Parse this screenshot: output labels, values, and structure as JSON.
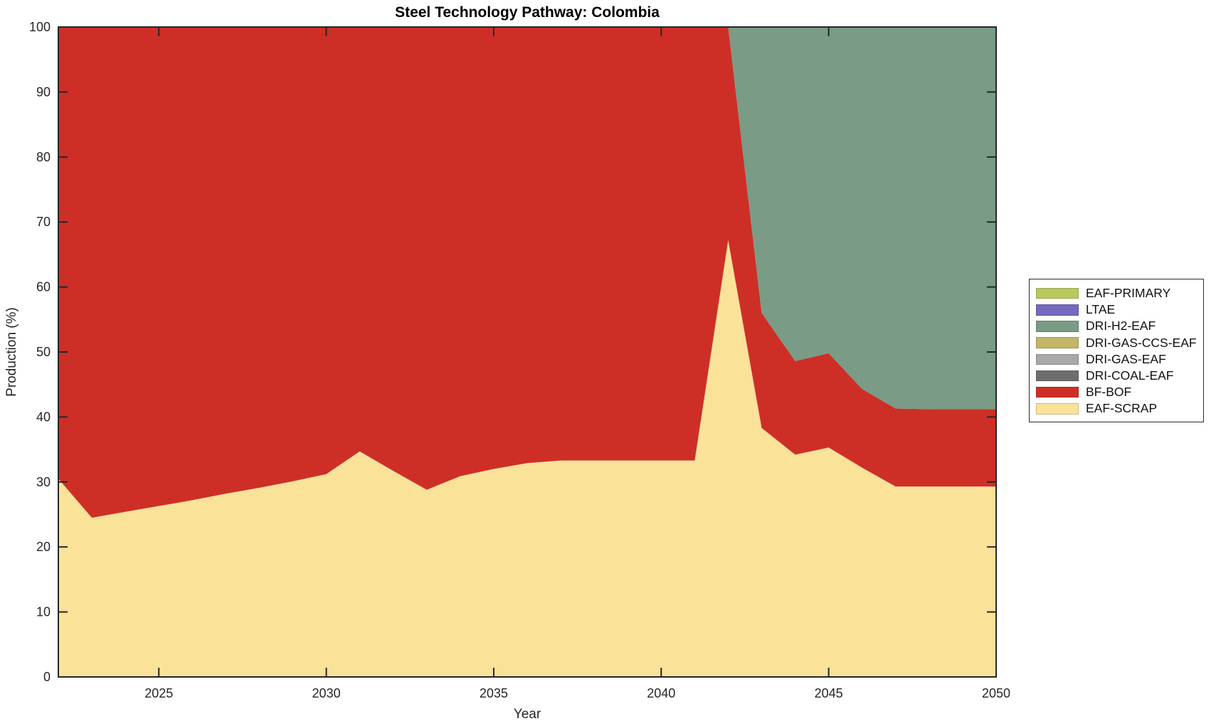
{
  "chart_data": {
    "type": "area",
    "stacked": true,
    "title": "Steel Technology Pathway: Colombia",
    "xlabel": "Year",
    "ylabel": "Production (%)",
    "xlim": [
      2022,
      2050
    ],
    "ylim": [
      0,
      100
    ],
    "xticks": [
      2025,
      2030,
      2035,
      2040,
      2045,
      2050
    ],
    "yticks": [
      0,
      10,
      20,
      30,
      40,
      50,
      60,
      70,
      80,
      90,
      100
    ],
    "grid": false,
    "axis_color": "#262626",
    "x": [
      2022,
      2023,
      2024,
      2025,
      2026,
      2027,
      2028,
      2029,
      2030,
      2031,
      2032,
      2033,
      2034,
      2035,
      2036,
      2037,
      2038,
      2039,
      2040,
      2041,
      2042,
      2043,
      2044,
      2045,
      2046,
      2047,
      2048,
      2049,
      2050
    ],
    "series": [
      {
        "name": "EAF-SCRAP",
        "color": "#FBE299",
        "values": [
          30.5,
          24.5,
          25.4,
          26.3,
          27.2,
          28.2,
          29.1,
          30.1,
          31.2,
          34.7,
          31.7,
          28.8,
          30.9,
          32.0,
          32.9,
          33.3,
          33.3,
          33.3,
          33.3,
          33.3,
          67.2,
          38.3,
          34.2,
          35.3,
          32.2,
          29.3,
          29.3,
          29.3,
          29.3
        ]
      },
      {
        "name": "BF-BOF",
        "color": "#CD2F27",
        "values": [
          69.5,
          75.5,
          74.6,
          73.7,
          72.8,
          71.8,
          70.9,
          69.9,
          68.8,
          65.3,
          68.3,
          71.2,
          69.1,
          68.0,
          67.1,
          66.7,
          66.7,
          66.7,
          66.7,
          66.7,
          32.8,
          17.7,
          14.4,
          14.5,
          12.1,
          12.0,
          11.9,
          11.9,
          11.9
        ]
      },
      {
        "name": "DRI-COAL-EAF",
        "color": "#6E6E6E",
        "values": [
          0,
          0,
          0,
          0,
          0,
          0,
          0,
          0,
          0,
          0,
          0,
          0,
          0,
          0,
          0,
          0,
          0,
          0,
          0,
          0,
          0,
          0,
          0,
          0,
          0,
          0,
          0,
          0,
          0
        ]
      },
      {
        "name": "DRI-GAS-EAF",
        "color": "#A9A9A9",
        "values": [
          0,
          0,
          0,
          0,
          0,
          0,
          0,
          0,
          0,
          0,
          0,
          0,
          0,
          0,
          0,
          0,
          0,
          0,
          0,
          0,
          0,
          0,
          0,
          0,
          0,
          0,
          0,
          0,
          0
        ]
      },
      {
        "name": "DRI-GAS-CCS-EAF",
        "color": "#C3B766",
        "values": [
          0,
          0,
          0,
          0,
          0,
          0,
          0,
          0,
          0,
          0,
          0,
          0,
          0,
          0,
          0,
          0,
          0,
          0,
          0,
          0,
          0,
          0,
          0,
          0,
          0,
          0,
          0,
          0,
          0
        ]
      },
      {
        "name": "DRI-H2-EAF",
        "color": "#7A9B85",
        "values": [
          0,
          0,
          0,
          0,
          0,
          0,
          0,
          0,
          0,
          0,
          0,
          0,
          0,
          0,
          0,
          0,
          0,
          0,
          0,
          0,
          0,
          44.0,
          51.4,
          50.2,
          55.7,
          58.7,
          58.8,
          58.8,
          58.8
        ]
      },
      {
        "name": "LTAE",
        "color": "#7568C0",
        "values": [
          0,
          0,
          0,
          0,
          0,
          0,
          0,
          0,
          0,
          0,
          0,
          0,
          0,
          0,
          0,
          0,
          0,
          0,
          0,
          0,
          0,
          0,
          0,
          0,
          0,
          0,
          0,
          0,
          0
        ]
      },
      {
        "name": "EAF-PRIMARY",
        "color": "#BAC95E",
        "values": [
          0,
          0,
          0,
          0,
          0,
          0,
          0,
          0,
          0,
          0,
          0,
          0,
          0,
          0,
          0,
          0,
          0,
          0,
          0,
          0,
          0,
          0,
          0,
          0,
          0,
          0,
          0,
          0,
          0
        ]
      }
    ],
    "legend": {
      "position": "outside-right",
      "entries_top_to_bottom": [
        "EAF-PRIMARY",
        "LTAE",
        "DRI-H2-EAF",
        "DRI-GAS-CCS-EAF",
        "DRI-GAS-EAF",
        "DRI-COAL-EAF",
        "BF-BOF",
        "EAF-SCRAP"
      ]
    }
  }
}
